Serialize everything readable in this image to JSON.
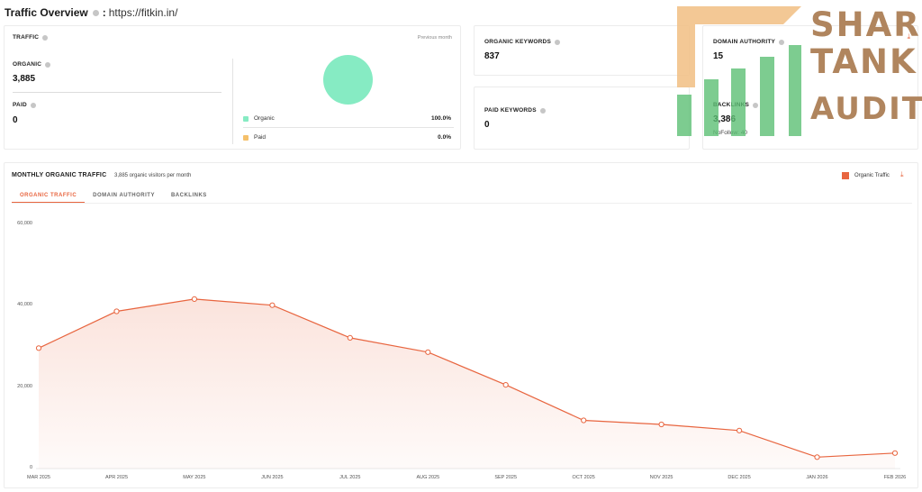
{
  "header": {
    "title": "Traffic Overview",
    "separator": ":",
    "url": "https://fitkin.in/"
  },
  "traffic_card": {
    "title": "TRAFFIC",
    "period": "Previous month",
    "organic_label": "ORGANIC",
    "organic_value": "3,885",
    "paid_label": "PAID",
    "paid_value": "0",
    "legend": [
      {
        "label": "Organic",
        "percent": "100.0%",
        "color": "#86ebc3"
      },
      {
        "label": "Paid",
        "percent": "0.0%",
        "color": "#f5c06a"
      }
    ]
  },
  "organic_keywords": {
    "label": "ORGANIC KEYWORDS",
    "value": "837"
  },
  "paid_keywords": {
    "label": "PAID KEYWORDS",
    "value": "0"
  },
  "domain_authority": {
    "label": "DOMAIN AUTHORITY",
    "value": "15"
  },
  "backlinks": {
    "label": "BACKLINKS",
    "value": "3,386",
    "nofollow": "NoFollow: 40"
  },
  "monthly": {
    "title": "MONTHLY ORGANIC TRAFFIC",
    "subtitle": "3,885 organic visitors per month",
    "legend_label": "Organic Traffic",
    "tabs": [
      "ORGANIC TRAFFIC",
      "DOMAIN AUTHORITY",
      "BACKLINKS"
    ],
    "active_tab": 0
  },
  "watermark": {
    "lines": [
      "SHARK",
      "TANK",
      "AUDITS"
    ]
  },
  "colors": {
    "accent": "#e8653f",
    "organic": "#86ebc3",
    "paid": "#f5c06a",
    "watermark_text": "#b0855e",
    "watermark_bars": "#5cbf74",
    "watermark_arrow": "#f2c28a"
  },
  "chart_data": {
    "type": "area",
    "categories": [
      "MAR 2025",
      "APR 2025",
      "MAY 2025",
      "JUN 2025",
      "JUL 2025",
      "AUG 2025",
      "SEP 2025",
      "OCT 2025",
      "NOV 2025",
      "DEC 2025",
      "JAN 2026",
      "FEB 2026"
    ],
    "series": [
      {
        "name": "Organic Traffic",
        "values": [
          29500,
          38500,
          41500,
          40000,
          32000,
          28500,
          20500,
          11800,
          10800,
          9300,
          2800,
          3800
        ]
      }
    ],
    "yticks": [
      "60,000",
      "40,000",
      "20,000",
      "0"
    ],
    "ylim": [
      0,
      60000
    ],
    "grid": false,
    "legend": "top-right"
  }
}
